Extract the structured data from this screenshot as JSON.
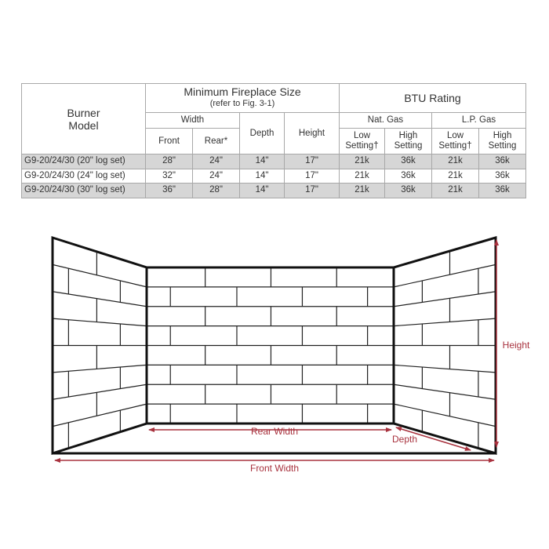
{
  "table": {
    "header": {
      "burner_model": [
        "Burner",
        "Model"
      ],
      "min_size_title": "Minimum Fireplace Size",
      "min_size_note": "(refer to Fig. 3-1)",
      "btu_title": "BTU Rating",
      "width": "Width",
      "front": "Front",
      "rear": "Rear*",
      "depth": "Depth",
      "height": "Height",
      "nat_gas": "Nat. Gas",
      "lp_gas": "L.P. Gas",
      "low_setting": [
        "Low",
        "Setting†"
      ],
      "high_setting": [
        "High",
        "Setting"
      ]
    },
    "rows": [
      [
        "G9-20/24/30 (20\" log set)",
        "28\"",
        "24\"",
        "14\"",
        "17\"",
        "21k",
        "36k",
        "21k",
        "36k"
      ],
      [
        "G9-20/24/30 (24\" log set)",
        "32\"",
        "24\"",
        "14\"",
        "17\"",
        "21k",
        "36k",
        "21k",
        "36k"
      ],
      [
        "G9-20/24/30 (30\" log set)",
        "36\"",
        "28\"",
        "14\"",
        "17\"",
        "21k",
        "36k",
        "21k",
        "36k"
      ]
    ]
  },
  "diagram": {
    "labels": {
      "rear_width": "Rear Width",
      "depth": "Depth",
      "front_width": "Front Width",
      "height": "Height"
    },
    "dimension_color": "#a8323e",
    "line_color": "#111111"
  }
}
